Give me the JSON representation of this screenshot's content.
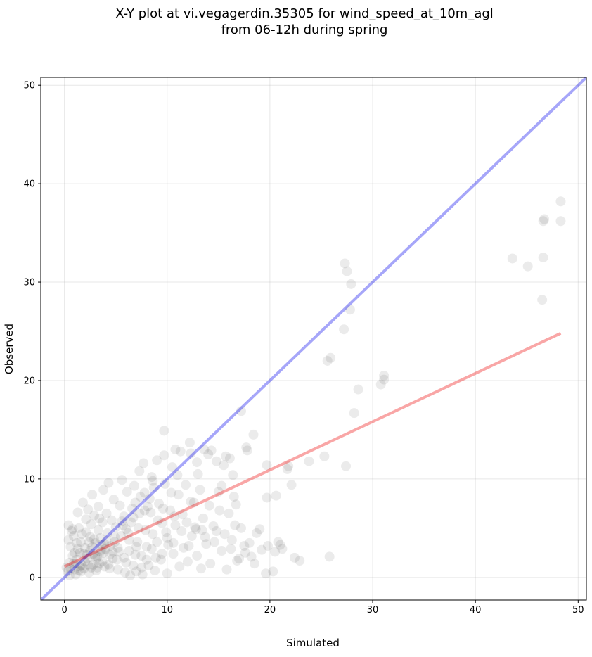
{
  "chart_data": {
    "type": "scatter",
    "title_line1": "X-Y plot at vi.vegagerdin.35305 for wind_speed_at_10m_agl",
    "title_line2": "from 06-12h during spring",
    "xlabel": "Simulated",
    "ylabel": "Observed",
    "xlim": [
      -2.3,
      50.8
    ],
    "ylim": [
      -2.3,
      50.8
    ],
    "xticks": [
      0,
      10,
      20,
      30,
      40,
      50
    ],
    "yticks": [
      0,
      10,
      20,
      30,
      40,
      50
    ],
    "grid": true,
    "point_color": "#000000",
    "point_alpha": 0.08,
    "reference_line": {
      "label": "1:1",
      "x": [
        -2.3,
        50.8
      ],
      "y": [
        -2.3,
        50.8
      ],
      "color": "#0000ee",
      "alpha": 0.35
    },
    "regression_line": {
      "x": [
        0,
        48.3
      ],
      "y": [
        1.1,
        24.8
      ],
      "color": "#ee0000",
      "alpha": 0.35
    },
    "points": [
      [
        0.5,
        1.5
      ],
      [
        0.8,
        2.2
      ],
      [
        1.0,
        0.8
      ],
      [
        1.2,
        1.8
      ],
      [
        1.5,
        2.5
      ],
      [
        1.7,
        1.2
      ],
      [
        2.0,
        3.0
      ],
      [
        2.2,
        1.9
      ],
      [
        2.5,
        2.7
      ],
      [
        2.8,
        1.3
      ],
      [
        3.0,
        3.5
      ],
      [
        3.2,
        2.1
      ],
      [
        3.5,
        4.0
      ],
      [
        3.7,
        1.6
      ],
      [
        4.0,
        2.9
      ],
      [
        4.2,
        4.5
      ],
      [
        4.5,
        3.2
      ],
      [
        4.7,
        1.9
      ],
      [
        5.0,
        5.1
      ],
      [
        5.3,
        2.6
      ],
      [
        0.3,
        0.6
      ],
      [
        0.6,
        3.1
      ],
      [
        0.9,
        4.2
      ],
      [
        1.1,
        0.3
      ],
      [
        1.4,
        5.0
      ],
      [
        1.6,
        3.6
      ],
      [
        1.9,
        0.9
      ],
      [
        2.1,
        4.6
      ],
      [
        2.4,
        0.5
      ],
      [
        2.6,
        5.4
      ],
      [
        2.9,
        3.9
      ],
      [
        3.1,
        0.7
      ],
      [
        3.4,
        6.0
      ],
      [
        3.6,
        2.8
      ],
      [
        3.9,
        1.1
      ],
      [
        4.1,
        6.5
      ],
      [
        4.4,
        0.9
      ],
      [
        4.6,
        5.8
      ],
      [
        4.9,
        3.6
      ],
      [
        5.2,
        0.8
      ],
      [
        5.5,
        4.2
      ],
      [
        5.8,
        6.2
      ],
      [
        6.0,
        1.5
      ],
      [
        6.3,
        3.8
      ],
      [
        6.6,
        7.0
      ],
      [
        6.9,
        2.3
      ],
      [
        7.2,
        5.0
      ],
      [
        7.5,
        1.0
      ],
      [
        7.8,
        6.8
      ],
      [
        8.0,
        3.1
      ],
      [
        8.3,
        8.0
      ],
      [
        8.6,
        4.4
      ],
      [
        8.9,
        2.0
      ],
      [
        9.2,
        7.5
      ],
      [
        9.5,
        5.5
      ],
      [
        9.8,
        9.5
      ],
      [
        10.1,
        3.3
      ],
      [
        10.4,
        8.6
      ],
      [
        10.7,
        6.2
      ],
      [
        11.0,
        10.4
      ],
      [
        1.3,
        6.6
      ],
      [
        0.4,
        5.3
      ],
      [
        0.7,
        4.7
      ],
      [
        1.8,
        7.6
      ],
      [
        2.3,
        6.9
      ],
      [
        2.7,
        8.4
      ],
      [
        3.3,
        7.2
      ],
      [
        3.8,
        8.9
      ],
      [
        4.3,
        9.6
      ],
      [
        4.8,
        7.9
      ],
      [
        5.6,
        9.9
      ],
      [
        6.1,
        8.7
      ],
      [
        6.8,
        9.3
      ],
      [
        7.3,
        10.8
      ],
      [
        7.7,
        11.6
      ],
      [
        8.5,
        10.2
      ],
      [
        9.0,
        11.9
      ],
      [
        9.7,
        12.4
      ],
      [
        10.5,
        11.2
      ],
      [
        11.3,
        12.8
      ],
      [
        11.8,
        9.4
      ],
      [
        12.2,
        13.7
      ],
      [
        12.6,
        7.6
      ],
      [
        13.0,
        10.5
      ],
      [
        13.5,
        6.0
      ],
      [
        14.0,
        12.5
      ],
      [
        14.5,
        5.2
      ],
      [
        15.0,
        8.7
      ],
      [
        15.5,
        11.4
      ],
      [
        16.0,
        6.5
      ],
      [
        5.9,
        0.5
      ],
      [
        6.4,
        0.2
      ],
      [
        7.0,
        0.6
      ],
      [
        7.6,
        0.3
      ],
      [
        8.2,
        1.2
      ],
      [
        8.8,
        0.7
      ],
      [
        9.4,
        1.8
      ],
      [
        10.0,
        0.4
      ],
      [
        10.6,
        2.4
      ],
      [
        11.2,
        1.1
      ],
      [
        11.6,
        3.0
      ],
      [
        12.0,
        1.6
      ],
      [
        12.4,
        4.2
      ],
      [
        12.9,
        2.2
      ],
      [
        13.3,
        0.9
      ],
      [
        13.8,
        3.4
      ],
      [
        14.2,
        1.4
      ],
      [
        14.8,
        4.7
      ],
      [
        15.3,
        2.7
      ],
      [
        15.8,
        0.8
      ],
      [
        16.3,
        3.8
      ],
      [
        16.8,
        1.7
      ],
      [
        17.2,
        5.0
      ],
      [
        17.6,
        2.5
      ],
      [
        18.0,
        3.5
      ],
      [
        18.5,
        1.4
      ],
      [
        19.0,
        4.9
      ],
      [
        19.6,
        0.4
      ],
      [
        20.3,
        0.6
      ],
      [
        20.8,
        3.6
      ],
      [
        21.2,
        2.9
      ],
      [
        21.7,
        11.0
      ],
      [
        22.1,
        9.4
      ],
      [
        22.4,
        2.0
      ],
      [
        22.9,
        1.7
      ],
      [
        23.8,
        11.8
      ],
      [
        25.3,
        12.3
      ],
      [
        25.6,
        22.0
      ],
      [
        25.8,
        2.1
      ],
      [
        25.9,
        22.3
      ],
      [
        27.3,
        31.9
      ],
      [
        27.5,
        31.1
      ],
      [
        27.8,
        27.2
      ],
      [
        27.9,
        29.8
      ],
      [
        27.2,
        25.2
      ],
      [
        27.4,
        11.3
      ],
      [
        28.2,
        16.7
      ],
      [
        28.6,
        19.1
      ],
      [
        30.8,
        19.6
      ],
      [
        31.1,
        20.1
      ],
      [
        31.1,
        20.5
      ],
      [
        43.6,
        32.4
      ],
      [
        45.1,
        31.6
      ],
      [
        46.5,
        28.2
      ],
      [
        46.6,
        32.5
      ],
      [
        46.6,
        36.2
      ],
      [
        46.7,
        36.4
      ],
      [
        48.3,
        38.2
      ],
      [
        48.3,
        36.2
      ],
      [
        17.2,
        16.9
      ],
      [
        9.7,
        14.9
      ],
      [
        16.5,
        8.2
      ],
      [
        16.7,
        7.4
      ],
      [
        18.4,
        14.5
      ],
      [
        17.7,
        13.2
      ],
      [
        17.8,
        12.9
      ],
      [
        15.7,
        12.3
      ],
      [
        16.1,
        12.1
      ],
      [
        19.7,
        11.4
      ],
      [
        19.7,
        8.1
      ],
      [
        20.6,
        8.3
      ],
      [
        21.8,
        11.3
      ],
      [
        16.4,
        10.4
      ],
      [
        15.3,
        9.3
      ],
      [
        14.3,
        12.9
      ],
      [
        13.6,
        13.0
      ],
      [
        14.8,
        11.8
      ],
      [
        12.9,
        11.7
      ],
      [
        12.3,
        12.6
      ],
      [
        10.8,
        13.0
      ],
      [
        0.2,
        1.0
      ],
      [
        0.5,
        0.2
      ],
      [
        0.9,
        1.4
      ],
      [
        1.3,
        2.9
      ],
      [
        1.6,
        0.6
      ],
      [
        2.0,
        1.6
      ],
      [
        2.4,
        3.6
      ],
      [
        2.8,
        2.4
      ],
      [
        3.2,
        1.0
      ],
      [
        3.6,
        3.3
      ],
      [
        1.0,
        2.5
      ],
      [
        1.5,
        1.1
      ],
      [
        2.2,
        2.3
      ],
      [
        2.6,
        1.0
      ],
      [
        3.0,
        2.2
      ],
      [
        3.4,
        1.4
      ],
      [
        3.8,
        2.5
      ],
      [
        4.3,
        1.3
      ],
      [
        4.7,
        2.6
      ],
      [
        5.1,
        1.8
      ],
      [
        0.4,
        3.8
      ],
      [
        0.8,
        4.9
      ],
      [
        1.2,
        3.5
      ],
      [
        1.7,
        4.4
      ],
      [
        2.1,
        5.9
      ],
      [
        2.5,
        4.1
      ],
      [
        2.9,
        6.3
      ],
      [
        3.3,
        4.8
      ],
      [
        3.7,
        5.6
      ],
      [
        4.1,
        3.7
      ],
      [
        5.4,
        7.3
      ],
      [
        5.7,
        5.3
      ],
      [
        6.2,
        4.5
      ],
      [
        6.7,
        6.1
      ],
      [
        7.1,
        3.6
      ],
      [
        7.4,
        8.2
      ],
      [
        7.9,
        4.8
      ],
      [
        8.4,
        6.6
      ],
      [
        8.7,
        9.1
      ],
      [
        9.1,
        5.8
      ],
      [
        9.6,
        7.0
      ],
      [
        9.9,
        4.6
      ],
      [
        10.3,
        6.8
      ],
      [
        10.8,
        5.3
      ],
      [
        11.1,
        8.4
      ],
      [
        11.5,
        6.4
      ],
      [
        11.9,
        5.6
      ],
      [
        12.3,
        7.7
      ],
      [
        12.8,
        4.9
      ],
      [
        13.2,
        8.9
      ],
      [
        13.7,
        4.1
      ],
      [
        14.1,
        7.3
      ],
      [
        14.6,
        3.6
      ],
      [
        15.1,
        6.8
      ],
      [
        15.6,
        4.4
      ],
      [
        16.2,
        2.9
      ],
      [
        16.6,
        5.3
      ],
      [
        17.0,
        1.9
      ],
      [
        17.5,
        3.2
      ],
      [
        18.2,
        2.1
      ],
      [
        18.7,
        4.5
      ],
      [
        19.2,
        2.8
      ],
      [
        19.8,
        3.2
      ],
      [
        20.5,
        2.6
      ],
      [
        21.0,
        3.3
      ],
      [
        5.8,
        2.0
      ],
      [
        6.3,
        2.7
      ],
      [
        6.7,
        1.2
      ],
      [
        7.0,
        3.1
      ],
      [
        7.5,
        2.2
      ],
      [
        8.0,
        1.8
      ],
      [
        8.5,
        2.9
      ],
      [
        9.0,
        3.6
      ],
      [
        9.5,
        2.4
      ],
      [
        10.0,
        4.0
      ],
      [
        10.6,
        3.5
      ],
      [
        11.4,
        4.7
      ],
      [
        12.1,
        3.2
      ],
      [
        12.7,
        5.1
      ],
      [
        13.4,
        4.8
      ],
      [
        0.6,
        0.9
      ],
      [
        1.1,
        1.4
      ],
      [
        1.4,
        0.7
      ],
      [
        1.9,
        2.4
      ],
      [
        2.3,
        1.3
      ],
      [
        2.7,
        3.1
      ],
      [
        3.1,
        1.9
      ],
      [
        3.5,
        2.6
      ],
      [
        3.9,
        3.4
      ],
      [
        4.4,
        2.3
      ],
      [
        4.9,
        4.1
      ],
      [
        5.2,
        3.0
      ],
      [
        5.6,
        5.7
      ],
      [
        6.0,
        4.9
      ],
      [
        6.5,
        5.6
      ],
      [
        6.9,
        7.6
      ],
      [
        7.3,
        6.5
      ],
      [
        7.8,
        8.6
      ],
      [
        8.1,
        7.2
      ],
      [
        8.6,
        9.8
      ]
    ]
  }
}
